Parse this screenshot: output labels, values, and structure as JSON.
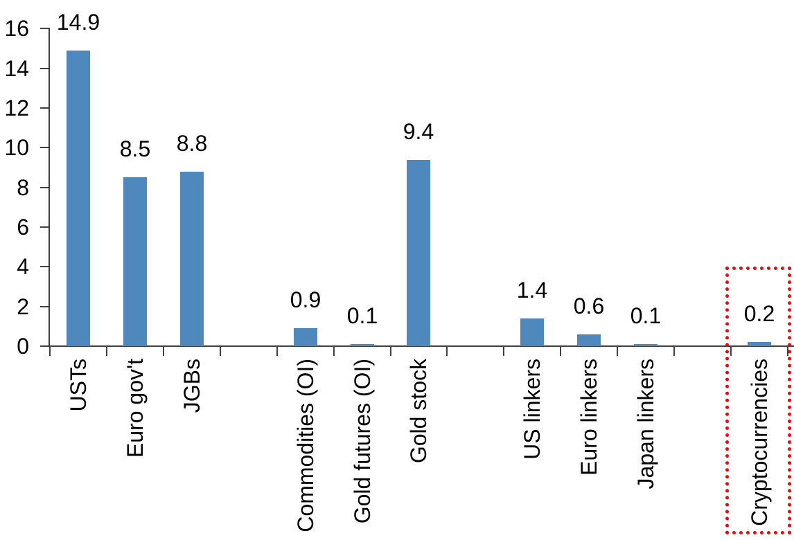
{
  "chart_data": {
    "type": "bar",
    "title": "",
    "xlabel": "",
    "ylabel": "",
    "ylim": [
      0,
      16
    ],
    "yticks": [
      0,
      2,
      4,
      6,
      8,
      10,
      12,
      14,
      16
    ],
    "grid": false,
    "legend_position": "none",
    "bar_color": "#4e88bd",
    "axis_color": "#3f3f3f",
    "text_color": "#000000",
    "highlight_box_color": "#ff0000",
    "highlighted_category": "Cryptocurrencies",
    "slots": [
      {
        "label": "USTs",
        "value": 14.9,
        "value_label": "14.9",
        "highlighted": false
      },
      {
        "label": "Euro gov't",
        "value": 8.5,
        "value_label": "8.5",
        "highlighted": false
      },
      {
        "label": "JGBs",
        "value": 8.8,
        "value_label": "8.8",
        "highlighted": false
      },
      {
        "label": "",
        "value": null,
        "value_label": "",
        "highlighted": false
      },
      {
        "label": "Commodities (OI)",
        "value": 0.9,
        "value_label": "0.9",
        "highlighted": false
      },
      {
        "label": "Gold futures (OI)",
        "value": 0.1,
        "value_label": "0.1",
        "highlighted": false
      },
      {
        "label": "Gold stock",
        "value": 9.4,
        "value_label": "9.4",
        "highlighted": false
      },
      {
        "label": "",
        "value": null,
        "value_label": "",
        "highlighted": false
      },
      {
        "label": "US linkers",
        "value": 1.4,
        "value_label": "1.4",
        "highlighted": false
      },
      {
        "label": "Euro linkers",
        "value": 0.6,
        "value_label": "0.6",
        "highlighted": false
      },
      {
        "label": "Japan linkers",
        "value": 0.1,
        "value_label": "0.1",
        "highlighted": false
      },
      {
        "label": "",
        "value": null,
        "value_label": "",
        "highlighted": false
      },
      {
        "label": "Cryptocurrencies",
        "value": 0.2,
        "value_label": "0.2",
        "highlighted": true
      }
    ]
  }
}
